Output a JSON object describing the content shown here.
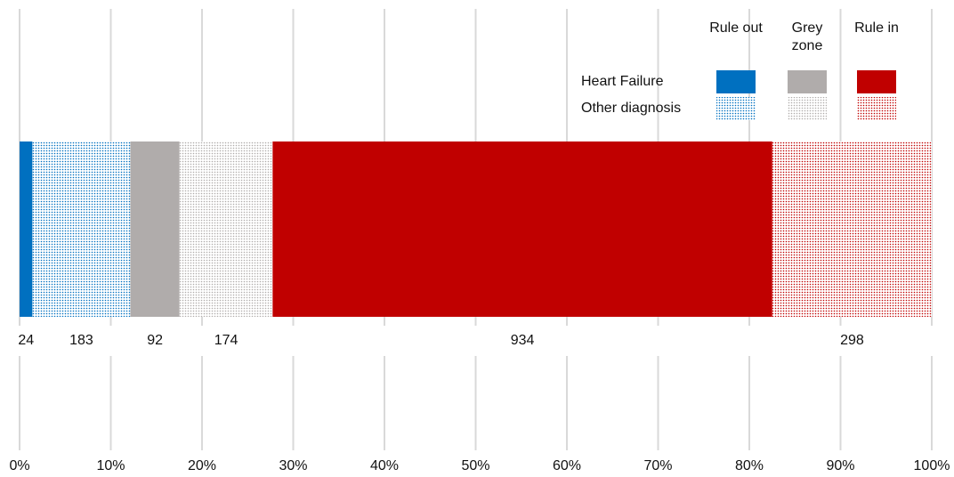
{
  "chart_data": {
    "type": "stacked_percent_bar",
    "groups": [
      "Rule out",
      "Grey zone",
      "Rule in"
    ],
    "series": [
      {
        "name": "Heart Failure",
        "pattern": "solid",
        "colors": [
          "#0070c0",
          "#b0acab",
          "#c00000"
        ],
        "values": [
          24,
          92,
          934
        ]
      },
      {
        "name": "Other diagnosis",
        "pattern": "dots",
        "colors": [
          "#0070c0",
          "#b0acab",
          "#c00000"
        ],
        "values": [
          183,
          174,
          298
        ]
      }
    ],
    "xlim": [
      0,
      100
    ],
    "xticks": [
      {
        "value": 0,
        "label": "0%"
      },
      {
        "value": 10,
        "label": "10%"
      },
      {
        "value": 20,
        "label": "20%"
      },
      {
        "value": 30,
        "label": "30%"
      },
      {
        "value": 40,
        "label": "40%"
      },
      {
        "value": 50,
        "label": "50%"
      },
      {
        "value": 60,
        "label": "60%"
      },
      {
        "value": 70,
        "label": "70%"
      },
      {
        "value": 80,
        "label": "80%"
      },
      {
        "value": 90,
        "label": "90%"
      },
      {
        "value": 100,
        "label": "100%"
      }
    ],
    "grid": true
  }
}
